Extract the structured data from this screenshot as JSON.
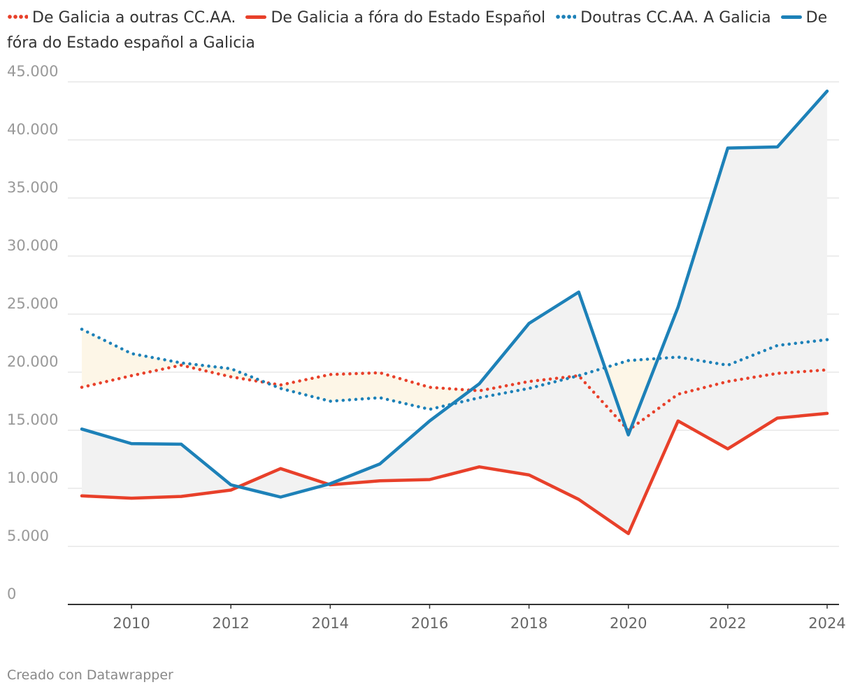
{
  "footer": {
    "credit": "Creado con Datawrapper"
  },
  "chart_data": {
    "type": "line",
    "title": "",
    "xlabel": "",
    "ylabel": "",
    "x": [
      2009,
      2010,
      2011,
      2012,
      2013,
      2014,
      2015,
      2016,
      2017,
      2018,
      2019,
      2020,
      2021,
      2022,
      2023,
      2024
    ],
    "xlim": [
      2009,
      2024
    ],
    "ylim": [
      0,
      45000
    ],
    "x_ticks": [
      2010,
      2012,
      2014,
      2016,
      2018,
      2020,
      2022,
      2024
    ],
    "x_tick_labels": [
      "2010",
      "2012",
      "2014",
      "2016",
      "2018",
      "2020",
      "2022",
      "2024"
    ],
    "y_ticks": [
      0,
      5000,
      10000,
      15000,
      20000,
      25000,
      30000,
      35000,
      40000,
      45000
    ],
    "y_tick_labels": [
      "0",
      "5.000",
      "10.000",
      "15.000",
      "20.000",
      "25.000",
      "30.000",
      "35.000",
      "40.000",
      "45.000"
    ],
    "grid": true,
    "legend_position": "top",
    "series": [
      {
        "name": "De Galicia a outras CC.AA.",
        "color": "#e8402a",
        "style": "dotted",
        "values": [
          18700,
          19700,
          20600,
          19600,
          18900,
          19800,
          19950,
          18700,
          18400,
          19200,
          19700,
          15000,
          18100,
          19200,
          19900,
          20200
        ]
      },
      {
        "name": "De Galicia a fóra do Estado Español",
        "color": "#e8402a",
        "style": "solid",
        "values": [
          9350,
          9150,
          9300,
          9850,
          11700,
          10300,
          10650,
          10750,
          11850,
          11150,
          9050,
          6100,
          15800,
          13400,
          16050,
          16450
        ]
      },
      {
        "name": "Doutras CC.AA. A Galicia",
        "color": "#1d81b8",
        "style": "dotted",
        "values": [
          23700,
          21600,
          20800,
          20300,
          18600,
          17500,
          17800,
          16800,
          17800,
          18600,
          19700,
          21000,
          21300,
          20600,
          22300,
          22800
        ]
      },
      {
        "name": "De fóra do Estado español a Galicia",
        "color": "#1d81b8",
        "style": "solid",
        "values": [
          15100,
          13850,
          13800,
          10300,
          9250,
          10400,
          12100,
          15800,
          19000,
          24200,
          26900,
          14600,
          25600,
          39300,
          39400,
          44200
        ]
      }
    ],
    "fill_between": [
      {
        "series": [
          0,
          2
        ],
        "color": "#fdf6e7"
      },
      {
        "series": [
          1,
          3
        ],
        "color": "#f2f2f2"
      }
    ]
  }
}
